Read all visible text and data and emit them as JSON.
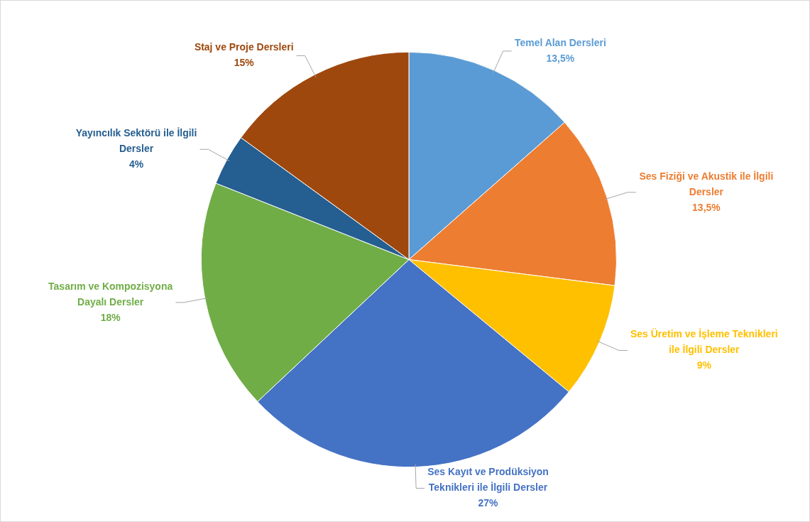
{
  "chart_data": {
    "type": "pie",
    "categories": [
      "Temel Alan Dersleri",
      "Ses Fiziği ve Akustik ile İlgili Dersler",
      "Ses Üretim ve İşleme Teknikleri ile İlgili Dersler",
      "Ses Kayıt ve Prodüksiyon Teknikleri ile İlgili Dersler",
      "Tasarım ve Kompozisyona Dayalı Dersler",
      "Yayıncılık Sektörü ile İlgili Dersler",
      "Staj ve Proje Dersleri"
    ],
    "values": [
      13.5,
      13.5,
      9,
      27,
      18,
      4,
      15
    ],
    "colors": [
      "#5b9bd5",
      "#ed7d31",
      "#ffc000",
      "#4472c4",
      "#70ad47",
      "#255e91",
      "#9e480e"
    ],
    "value_labels": [
      "13,5%",
      "13,5%",
      "9%",
      "27%",
      "18%",
      "4%",
      "15%"
    ],
    "legend": false
  }
}
